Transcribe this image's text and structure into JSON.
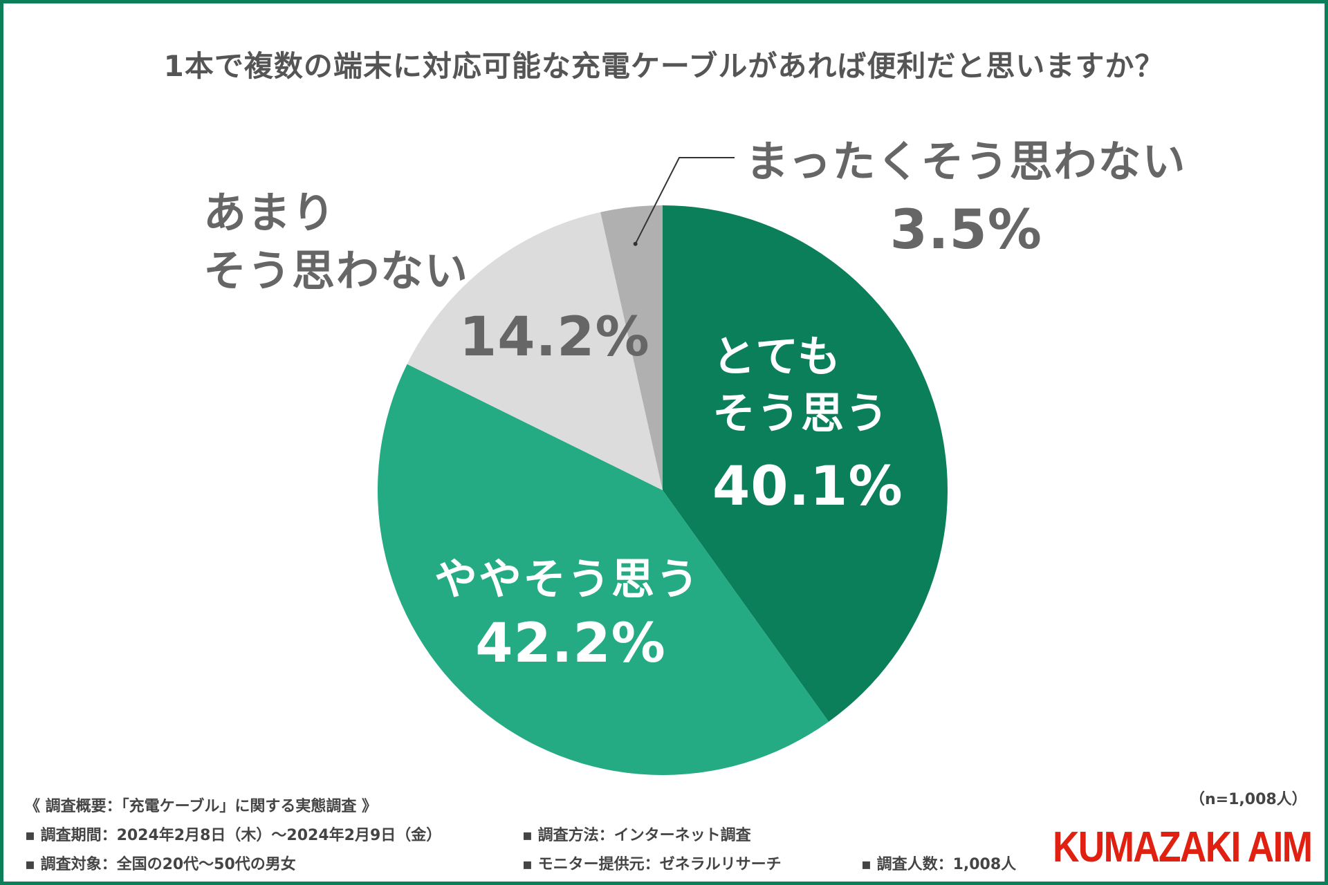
{
  "title": "1本で複数の端末に対応可能な充電ケーブルがあれば便利だと思いますか？",
  "chart_data": {
    "type": "pie",
    "start": "12 o'clock",
    "direction": "clockwise",
    "slices": [
      {
        "label_lines": [
          "とても",
          "そう思う"
        ],
        "value": 40.1,
        "display": "40.1%",
        "color": "#0b7e5a",
        "label_color": "#ffffff"
      },
      {
        "label_lines": [
          "ややそう思う"
        ],
        "value": 42.2,
        "display": "42.2%",
        "color": "#24ab84",
        "label_color": "#ffffff"
      },
      {
        "label_lines": [
          "あまり",
          "そう思わない"
        ],
        "value": 14.2,
        "display": "14.2%",
        "color": "#dcdcdc",
        "label_color": "#666666"
      },
      {
        "label_lines": [
          "まったくそう思わない"
        ],
        "value": 3.5,
        "display": "3.5%",
        "color": "#b0b0b0",
        "label_color": "#666666"
      }
    ]
  },
  "sample_note": "（n=1,008人）",
  "survey": {
    "heading": "《 調査概要：「充電ケーブル」に関する実態調査 》",
    "period": "▪ 調査期間：2024年2月8日（木）〜2024年2月9日（金）",
    "method": "▪ 調査方法：インターネット調査",
    "target": "▪ 調査対象：全国の20代〜50代の男女",
    "provider": "▪ モニター提供元：ゼネラルリサーチ",
    "count": "▪ 調査人数：1,008人"
  },
  "logo_text": "KUMAZAKI AIM"
}
